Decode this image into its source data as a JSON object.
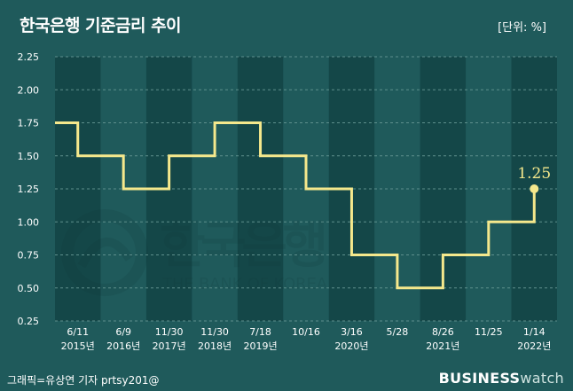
{
  "header": {
    "title": "한국은행 기준금리 추이",
    "unit": "[단위: %]"
  },
  "footer": {
    "credit": "그래픽=유상연 기자 prtsy201@",
    "brand_bold": "BUSINESS",
    "brand_light": "watch"
  },
  "watermark": {
    "korean": "한국은행",
    "english": "THE BANK OF KOREA"
  },
  "colors": {
    "background": "#1f5a5b",
    "band_dark": "#144748",
    "line": "#f5e88c",
    "grid": "#5e8f8c",
    "text": "#ffffff"
  },
  "chart_data": {
    "type": "line",
    "title": "한국은행 기준금리 추이",
    "unit_label": "[단위: %]",
    "step": true,
    "ylim": [
      0.25,
      2.25
    ],
    "yticks": [
      "2.25",
      "2.00",
      "1.75",
      "1.50",
      "1.25",
      "1.00",
      "0.75",
      "0.50",
      "0.25"
    ],
    "grid": "dashed horizontal",
    "x_dates": [
      {
        "date": "6/11",
        "year": "2015년"
      },
      {
        "date": "6/9",
        "year": "2016년"
      },
      {
        "date": "11/30",
        "year": "2017년"
      },
      {
        "date": "11/30",
        "year": "2018년"
      },
      {
        "date": "7/18",
        "year": "2019년"
      },
      {
        "date": "10/16",
        "year": ""
      },
      {
        "date": "3/16",
        "year": "2020년"
      },
      {
        "date": "5/28",
        "year": ""
      },
      {
        "date": "8/26",
        "year": "2021년"
      },
      {
        "date": "11/25",
        "year": ""
      },
      {
        "date": "1/14",
        "year": "2022년"
      }
    ],
    "values": [
      1.5,
      1.25,
      1.5,
      1.75,
      1.5,
      1.25,
      0.75,
      0.5,
      0.75,
      1.0,
      1.25
    ],
    "initial_value": 1.75,
    "last_label": "1.25"
  }
}
